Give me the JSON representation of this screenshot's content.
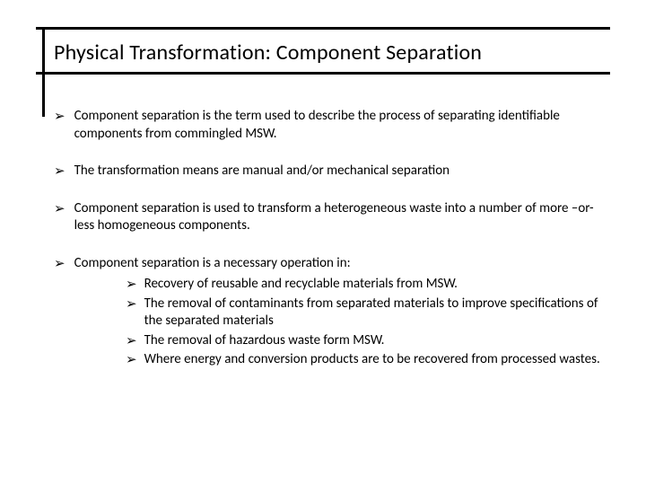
{
  "title": "Physical Transformation: Component Separation",
  "bullets": {
    "b1": "Component separation is the term used to describe the process of separating identifiable components from commingled MSW.",
    "b2": "The transformation means are manual and/or mechanical separation",
    "b3": "Component separation is used to transform a heterogeneous waste into a number of more –or-less homogeneous components.",
    "b4": "Component separation is a necessary operation in:"
  },
  "subs": {
    "s1": "Recovery of reusable and recyclable materials from MSW.",
    "s2": "The removal of contaminants from separated materials to improve specifications of the separated materials",
    "s3": "The removal of hazardous waste form MSW.",
    "s4": "Where energy and conversion products are to be recovered from processed wastes."
  },
  "marker": "➢",
  "style": {
    "text_color": "#000000",
    "background_color": "#ffffff",
    "rule_color": "#000000",
    "title_fontsize": 24,
    "body_fontsize": 15,
    "font_family": "Calibri"
  }
}
